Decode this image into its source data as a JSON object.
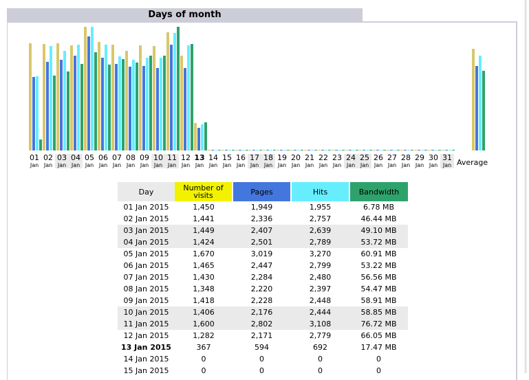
{
  "section_title": "Days of month",
  "chart_data": {
    "type": "bar",
    "categories": [
      "01",
      "02",
      "03",
      "04",
      "05",
      "06",
      "07",
      "08",
      "09",
      "10",
      "11",
      "12",
      "13",
      "14",
      "15",
      "16",
      "17",
      "18",
      "19",
      "20",
      "21",
      "22",
      "23",
      "24",
      "25",
      "26",
      "27",
      "28",
      "29",
      "30",
      "31"
    ],
    "month_label": "Jan",
    "weekend_days": [
      "03",
      "04",
      "10",
      "11",
      "17",
      "18",
      "24",
      "25",
      "31"
    ],
    "today": "13",
    "average_label": "Average",
    "series": [
      {
        "name": "Number of visits",
        "color": "#d8c76c",
        "values": [
          1450,
          1441,
          1449,
          1424,
          1670,
          1465,
          1430,
          1348,
          1418,
          1406,
          1600,
          1282,
          367,
          0,
          0,
          0,
          0,
          0,
          0,
          0,
          0,
          0,
          0,
          0,
          0,
          0,
          0,
          0,
          0,
          0,
          0
        ],
        "average": 1369
      },
      {
        "name": "Pages",
        "color": "#4477dd",
        "values": [
          1949,
          2336,
          2407,
          2501,
          3019,
          2447,
          2284,
          2220,
          2228,
          2176,
          2802,
          2171,
          594,
          0,
          0,
          0,
          0,
          0,
          0,
          0,
          0,
          0,
          0,
          0,
          0,
          0,
          0,
          0,
          0,
          0,
          0
        ],
        "average": 2241
      },
      {
        "name": "Hits",
        "color": "#66eeff",
        "values": [
          1955,
          2757,
          2639,
          2789,
          3270,
          2799,
          2480,
          2397,
          2448,
          2444,
          3108,
          2779,
          692,
          0,
          0,
          0,
          0,
          0,
          0,
          0,
          0,
          0,
          0,
          0,
          0,
          0,
          0,
          0,
          0,
          0,
          0
        ],
        "average": 2505
      },
      {
        "name": "Bandwidth",
        "color": "#2ea26b",
        "values": [
          6.78,
          46.44,
          49.1,
          53.72,
          60.91,
          53.22,
          56.56,
          54.47,
          58.91,
          58.85,
          76.72,
          66.05,
          17.47,
          0,
          0,
          0,
          0,
          0,
          0,
          0,
          0,
          0,
          0,
          0,
          0,
          0,
          0,
          0,
          0,
          0,
          0
        ],
        "average": 49.48
      }
    ],
    "max_visits": 1670,
    "max_pages_hits": 3270,
    "max_bandwidth": 76.72
  },
  "table": {
    "headers": [
      {
        "label": "Day",
        "bg": "#eaeaea"
      },
      {
        "label": "Number of visits",
        "bg": "#f2f200"
      },
      {
        "label": "Pages",
        "bg": "#4477dd"
      },
      {
        "label": "Hits",
        "bg": "#66eeff"
      },
      {
        "label": "Bandwidth",
        "bg": "#2ea26b"
      }
    ],
    "rows": [
      {
        "day": "01 Jan 2015",
        "visits": "1,450",
        "pages": "1,949",
        "hits": "1,955",
        "bandwidth": "6.78 MB",
        "weekend": false,
        "today": false
      },
      {
        "day": "02 Jan 2015",
        "visits": "1,441",
        "pages": "2,336",
        "hits": "2,757",
        "bandwidth": "46.44 MB",
        "weekend": false,
        "today": false
      },
      {
        "day": "03 Jan 2015",
        "visits": "1,449",
        "pages": "2,407",
        "hits": "2,639",
        "bandwidth": "49.10 MB",
        "weekend": true,
        "today": false
      },
      {
        "day": "04 Jan 2015",
        "visits": "1,424",
        "pages": "2,501",
        "hits": "2,789",
        "bandwidth": "53.72 MB",
        "weekend": true,
        "today": false
      },
      {
        "day": "05 Jan 2015",
        "visits": "1,670",
        "pages": "3,019",
        "hits": "3,270",
        "bandwidth": "60.91 MB",
        "weekend": false,
        "today": false
      },
      {
        "day": "06 Jan 2015",
        "visits": "1,465",
        "pages": "2,447",
        "hits": "2,799",
        "bandwidth": "53.22 MB",
        "weekend": false,
        "today": false
      },
      {
        "day": "07 Jan 2015",
        "visits": "1,430",
        "pages": "2,284",
        "hits": "2,480",
        "bandwidth": "56.56 MB",
        "weekend": false,
        "today": false
      },
      {
        "day": "08 Jan 2015",
        "visits": "1,348",
        "pages": "2,220",
        "hits": "2,397",
        "bandwidth": "54.47 MB",
        "weekend": false,
        "today": false
      },
      {
        "day": "09 Jan 2015",
        "visits": "1,418",
        "pages": "2,228",
        "hits": "2,448",
        "bandwidth": "58.91 MB",
        "weekend": false,
        "today": false
      },
      {
        "day": "10 Jan 2015",
        "visits": "1,406",
        "pages": "2,176",
        "hits": "2,444",
        "bandwidth": "58.85 MB",
        "weekend": true,
        "today": false
      },
      {
        "day": "11 Jan 2015",
        "visits": "1,600",
        "pages": "2,802",
        "hits": "3,108",
        "bandwidth": "76.72 MB",
        "weekend": true,
        "today": false
      },
      {
        "day": "12 Jan 2015",
        "visits": "1,282",
        "pages": "2,171",
        "hits": "2,779",
        "bandwidth": "66.05 MB",
        "weekend": false,
        "today": false
      },
      {
        "day": "13 Jan 2015",
        "visits": "367",
        "pages": "594",
        "hits": "692",
        "bandwidth": "17.47 MB",
        "weekend": false,
        "today": true
      },
      {
        "day": "14 Jan 2015",
        "visits": "0",
        "pages": "0",
        "hits": "0",
        "bandwidth": "0",
        "weekend": false,
        "today": false
      },
      {
        "day": "15 Jan 2015",
        "visits": "0",
        "pages": "0",
        "hits": "0",
        "bandwidth": "0",
        "weekend": false,
        "today": false
      }
    ]
  }
}
